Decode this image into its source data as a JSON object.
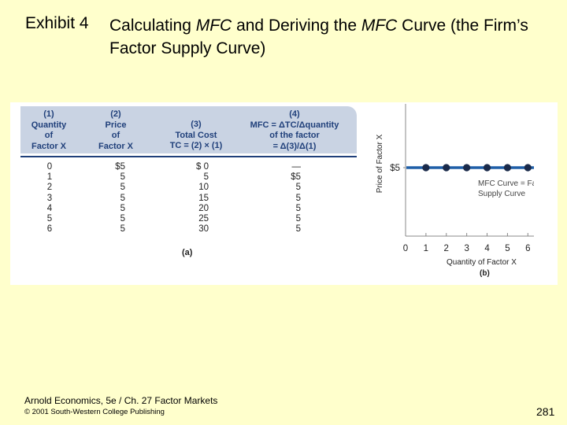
{
  "title": {
    "label": "Exhibit 4",
    "part1": "Calculating ",
    "mfc1": "MFC",
    "part2": " and Deriving the ",
    "mfc2": "MFC",
    "part3": " Curve (the Firm’s Factor Supply Curve)"
  },
  "table": {
    "headers": {
      "c1": [
        "(1)",
        "Quantity",
        "of",
        "Factor X"
      ],
      "c2": [
        "(2)",
        "Price",
        "of",
        "Factor X"
      ],
      "c3": [
        "(3)",
        "Total Cost",
        "TC = (2) × (1)"
      ],
      "c4": [
        "(4)",
        "MFC = ΔTC/Δquantity",
        "of the factor",
        "= Δ(3)/Δ(1)"
      ]
    },
    "quantity": [
      "0",
      "1",
      "2",
      "3",
      "4",
      "5",
      "6"
    ],
    "price": [
      "$5",
      "5",
      "5",
      "5",
      "5",
      "5",
      "5"
    ],
    "total_cost": [
      "$ 0",
      "5",
      "10",
      "15",
      "20",
      "25",
      "30"
    ],
    "mfc": [
      "—",
      "$5",
      "5",
      "5",
      "5",
      "5",
      "5"
    ],
    "caption": "(a)"
  },
  "chart_data": {
    "type": "line",
    "x": [
      1,
      2,
      3,
      4,
      5,
      6
    ],
    "y": [
      5,
      5,
      5,
      5,
      5,
      5
    ],
    "xticks": [
      "0",
      "1",
      "2",
      "3",
      "4",
      "5",
      "6"
    ],
    "xlim": [
      0,
      6.8
    ],
    "ytick_label": "$5",
    "xlabel": "Quantity of Factor X",
    "ylabel": "Price of Factor X",
    "annotation": [
      "MFC Curve = Factor",
      "Supply Curve"
    ],
    "caption": "(b)",
    "line_color": "#1f5fa8",
    "point_color": "#1a2a4a"
  },
  "footer": {
    "line1": "Arnold Economics, 5e / Ch. 27  Factor Markets",
    "line2": "© 2001 South-Western College Publishing",
    "page": "281"
  }
}
